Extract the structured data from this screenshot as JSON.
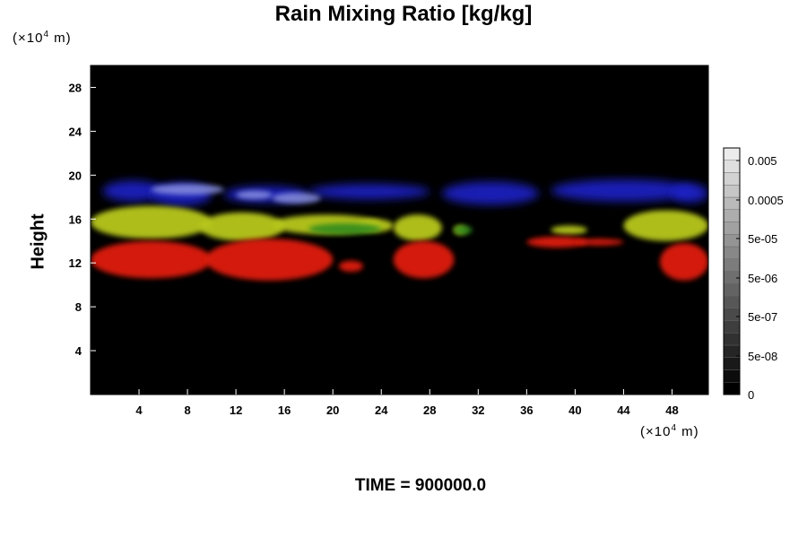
{
  "chart_data": {
    "type": "heatmap",
    "title": "Rain Mixing Ratio [kg/kg]",
    "ylabel": "Height",
    "x_unit_prefix": "(×10",
    "x_unit_exp": "4",
    "x_unit_suffix": " m)",
    "y_unit_prefix": "(×10",
    "y_unit_exp": "4",
    "y_unit_suffix": " m)",
    "xlim": [
      0,
      51
    ],
    "ylim": [
      0,
      30
    ],
    "x_ticks": [
      4,
      8,
      12,
      16,
      20,
      24,
      28,
      32,
      36,
      40,
      44,
      48
    ],
    "y_ticks": [
      4,
      8,
      12,
      16,
      20,
      24,
      28
    ],
    "colorbar": {
      "levels": 20,
      "tick_labels": [
        "0.005",
        "0.0005",
        "5e-05",
        "5e-06",
        "5e-07",
        "5e-08",
        "0"
      ]
    },
    "bands": [
      {
        "name_color": "blue",
        "color": "#1f22c8",
        "y_range": [
          17.5,
          19.5
        ]
      },
      {
        "name_color": "yellow",
        "color": "#b8c81a",
        "y_range": [
          14.5,
          17.0
        ]
      },
      {
        "name_color": "red",
        "color": "#e01a10",
        "y_range": [
          10.5,
          14.0
        ]
      }
    ],
    "background_color": "#000000"
  },
  "footer": {
    "time_label": "TIME = 900000.0"
  }
}
